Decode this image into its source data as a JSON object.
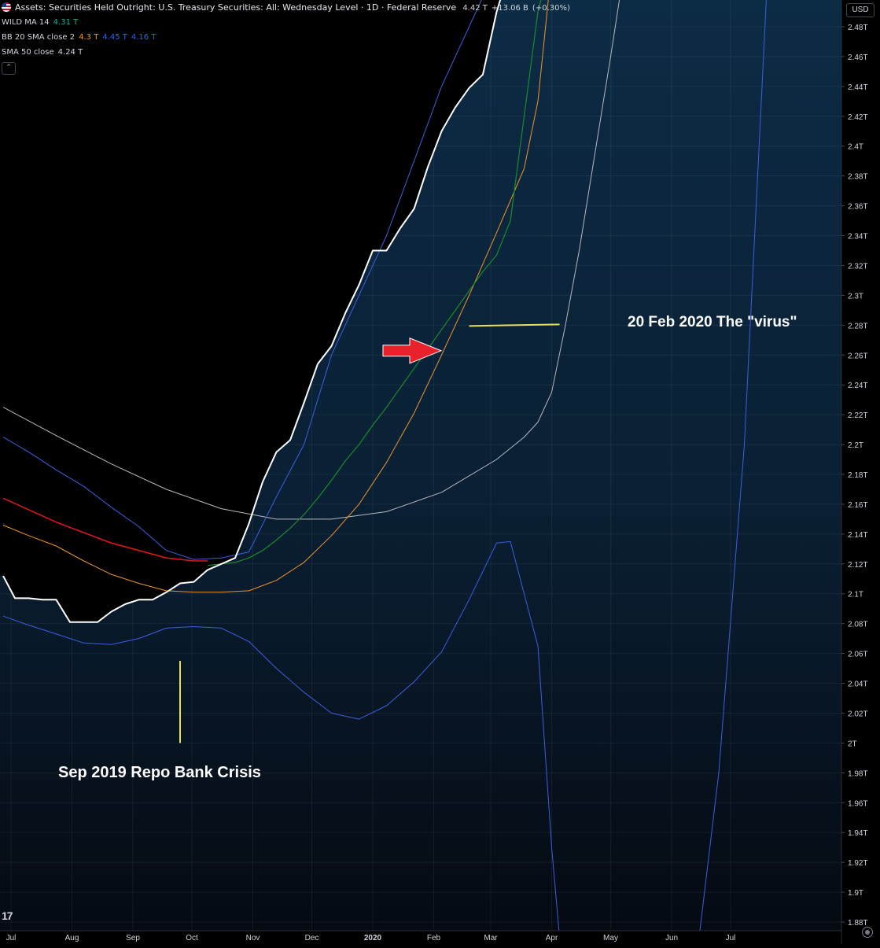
{
  "header": {
    "title": "Assets: Securities Held Outright: U.S. Treasury Securities: All: Wednesday Level · 1D · Federal Reserve",
    "last_value": "4.42 T",
    "change": "+13.06 B",
    "change_pct": "(+0.30%)",
    "currency": "USD"
  },
  "indicators": [
    {
      "name": "WILD MA 14",
      "values": [
        "4.31 T"
      ],
      "colors": [
        "#22ab94"
      ]
    },
    {
      "name": "BB 20 SMA close 2",
      "values": [
        "4.3 T",
        "4.45 T",
        "4.16 T"
      ],
      "colors": [
        "#ff9800",
        "#2962ff",
        "#2962ff"
      ]
    },
    {
      "name": "SMA 50 close",
      "values": [
        "4.24 T"
      ],
      "colors": [
        "#d1d4dc"
      ]
    }
  ],
  "collapse_icon": "chevron-up-icon",
  "annotations": {
    "repo": "Sep 2019 Repo Bank Crisis",
    "virus": "20 Feb 2020 The \"virus\""
  },
  "colors": {
    "price": "#ffffff",
    "wild_ma": "#1b8a2a",
    "bb_basis": "#f0952a",
    "bb_upper": "#3b5fe0",
    "bb_lower": "#3b5fe0",
    "sma50": "#b8b8c0",
    "red_ma": "#d81818",
    "marker": "#e8e05a",
    "arrow": "#e8212a",
    "band_fill": "#0b2740"
  },
  "chart_data": {
    "type": "line",
    "title": "Assets: Securities Held Outright: U.S. Treasury Securities: All: Wednesday Level · 1D · Federal Reserve",
    "x_tick_labels": [
      "Jul",
      "Aug",
      "Sep",
      "Oct",
      "Nov",
      "Dec",
      "2020",
      "Feb",
      "Mar",
      "Apr",
      "May",
      "Jun",
      "Jul"
    ],
    "y_tick_labels": [
      "2.48T",
      "2.46T",
      "2.44T",
      "2.42T",
      "2.4T",
      "2.38T",
      "2.36T",
      "2.34T",
      "2.32T",
      "2.3T",
      "2.28T",
      "2.26T",
      "2.24T",
      "2.22T",
      "2.2T",
      "2.18T",
      "2.16T",
      "2.14T",
      "2.12T",
      "2.1T",
      "2.08T",
      "2.06T",
      "2.04T",
      "2.02T",
      "2T",
      "1.98T",
      "1.96T",
      "1.94T",
      "1.92T",
      "1.9T",
      "1.88T"
    ],
    "ylim": [
      1.876,
      2.494
    ],
    "y_unit": "T",
    "grid": true,
    "series": [
      {
        "name": "Assets: Securities Held Outright: U.S. Treasury Securities: All: Wednesday Level",
        "key": "price",
        "points": [
          [
            "2019-06-27",
            2.112
          ],
          [
            "2019-07-03",
            2.097
          ],
          [
            "2019-07-10",
            2.097
          ],
          [
            "2019-07-17",
            2.096
          ],
          [
            "2019-07-24",
            2.096
          ],
          [
            "2019-07-31",
            2.081
          ],
          [
            "2019-08-07",
            2.081
          ],
          [
            "2019-08-14",
            2.081
          ],
          [
            "2019-08-21",
            2.088
          ],
          [
            "2019-08-28",
            2.093
          ],
          [
            "2019-09-04",
            2.096
          ],
          [
            "2019-09-11",
            2.096
          ],
          [
            "2019-09-18",
            2.101
          ],
          [
            "2019-09-25",
            2.107
          ],
          [
            "2019-10-02",
            2.108
          ],
          [
            "2019-10-09",
            2.116
          ],
          [
            "2019-10-16",
            2.12
          ],
          [
            "2019-10-23",
            2.124
          ],
          [
            "2019-10-30",
            2.147
          ],
          [
            "2019-11-06",
            2.175
          ],
          [
            "2019-11-13",
            2.195
          ],
          [
            "2019-11-20",
            2.203
          ],
          [
            "2019-11-27",
            2.228
          ],
          [
            "2019-12-04",
            2.254
          ],
          [
            "2019-12-11",
            2.266
          ],
          [
            "2019-12-18",
            2.288
          ],
          [
            "2019-12-25",
            2.307
          ],
          [
            "2020-01-01",
            2.33
          ],
          [
            "2020-01-08",
            2.33
          ],
          [
            "2020-01-15",
            2.345
          ],
          [
            "2020-01-22",
            2.358
          ],
          [
            "2020-01-29",
            2.386
          ],
          [
            "2020-02-05",
            2.41
          ],
          [
            "2020-02-12",
            2.426
          ],
          [
            "2020-02-19",
            2.439
          ],
          [
            "2020-02-26",
            2.448
          ],
          [
            "2020-03-04",
            2.49
          ],
          [
            "2020-03-11",
            2.52
          ]
        ]
      },
      {
        "name": "WILD MA 14",
        "key": "wild",
        "points": [
          [
            "2019-10-09",
            2.119
          ],
          [
            "2019-10-16",
            2.12
          ],
          [
            "2019-10-23",
            2.121
          ],
          [
            "2019-10-30",
            2.124
          ],
          [
            "2019-11-06",
            2.129
          ],
          [
            "2019-11-13",
            2.136
          ],
          [
            "2019-11-20",
            2.144
          ],
          [
            "2019-11-27",
            2.153
          ],
          [
            "2019-12-04",
            2.164
          ],
          [
            "2019-12-11",
            2.176
          ],
          [
            "2019-12-18",
            2.189
          ],
          [
            "2019-12-25",
            2.2
          ],
          [
            "2020-01-01",
            2.213
          ],
          [
            "2020-01-08",
            2.225
          ],
          [
            "2020-01-15",
            2.238
          ],
          [
            "2020-01-22",
            2.251
          ],
          [
            "2020-01-29",
            2.264
          ],
          [
            "2020-02-05",
            2.277
          ],
          [
            "2020-02-12",
            2.29
          ],
          [
            "2020-02-19",
            2.303
          ],
          [
            "2020-02-26",
            2.316
          ],
          [
            "2020-03-04",
            2.327
          ],
          [
            "2020-03-11",
            2.35
          ],
          [
            "2020-03-18",
            2.42
          ],
          [
            "2020-03-25",
            2.49
          ],
          [
            "2020-03-31",
            2.52
          ]
        ]
      },
      {
        "name": "BB 20 SMA close 2 (basis)",
        "key": "bb_basis",
        "points": [
          [
            "2019-06-27",
            2.146
          ],
          [
            "2019-07-10",
            2.139
          ],
          [
            "2019-07-24",
            2.132
          ],
          [
            "2019-08-07",
            2.122
          ],
          [
            "2019-08-21",
            2.113
          ],
          [
            "2019-09-04",
            2.107
          ],
          [
            "2019-09-18",
            2.102
          ],
          [
            "2019-10-02",
            2.101
          ],
          [
            "2019-10-16",
            2.101
          ],
          [
            "2019-10-30",
            2.102
          ],
          [
            "2019-11-13",
            2.109
          ],
          [
            "2019-11-27",
            2.121
          ],
          [
            "2019-12-11",
            2.139
          ],
          [
            "2019-12-25",
            2.16
          ],
          [
            "2020-01-08",
            2.188
          ],
          [
            "2020-01-22",
            2.221
          ],
          [
            "2020-02-05",
            2.26
          ],
          [
            "2020-02-19",
            2.3
          ],
          [
            "2020-03-04",
            2.342
          ],
          [
            "2020-03-18",
            2.385
          ],
          [
            "2020-03-25",
            2.43
          ],
          [
            "2020-04-01",
            2.52
          ]
        ]
      },
      {
        "name": "BB 20 SMA close 2 (upper)",
        "key": "bb_upper",
        "points": [
          [
            "2019-06-27",
            2.205
          ],
          [
            "2019-07-10",
            2.195
          ],
          [
            "2019-07-24",
            2.183
          ],
          [
            "2019-08-07",
            2.172
          ],
          [
            "2019-08-21",
            2.158
          ],
          [
            "2019-09-04",
            2.145
          ],
          [
            "2019-09-18",
            2.129
          ],
          [
            "2019-10-02",
            2.123
          ],
          [
            "2019-10-16",
            2.124
          ],
          [
            "2019-10-30",
            2.128
          ],
          [
            "2019-11-13",
            2.165
          ],
          [
            "2019-11-27",
            2.2
          ],
          [
            "2019-12-11",
            2.26
          ],
          [
            "2019-12-25",
            2.3
          ],
          [
            "2020-01-08",
            2.34
          ],
          [
            "2020-01-22",
            2.39
          ],
          [
            "2020-02-05",
            2.44
          ],
          [
            "2020-02-19",
            2.48
          ],
          [
            "2020-03-04",
            2.52
          ]
        ]
      },
      {
        "name": "BB 20 SMA close 2 (lower)",
        "key": "bb_lower",
        "points": [
          [
            "2019-06-27",
            2.085
          ],
          [
            "2019-07-10",
            2.079
          ],
          [
            "2019-07-24",
            2.073
          ],
          [
            "2019-08-07",
            2.067
          ],
          [
            "2019-08-21",
            2.066
          ],
          [
            "2019-09-04",
            2.07
          ],
          [
            "2019-09-18",
            2.077
          ],
          [
            "2019-10-02",
            2.078
          ],
          [
            "2019-10-16",
            2.077
          ],
          [
            "2019-10-30",
            2.068
          ],
          [
            "2019-11-13",
            2.05
          ],
          [
            "2019-11-27",
            2.034
          ],
          [
            "2019-12-11",
            2.02
          ],
          [
            "2019-12-25",
            2.016
          ],
          [
            "2020-01-08",
            2.025
          ],
          [
            "2020-01-22",
            2.041
          ],
          [
            "2020-02-05",
            2.061
          ],
          [
            "2020-02-19",
            2.096
          ],
          [
            "2020-03-04",
            2.134
          ],
          [
            "2020-03-11",
            2.135
          ],
          [
            "2020-03-25",
            2.065
          ],
          [
            "2020-04-01",
            1.93
          ],
          [
            "2020-04-05",
            1.87
          ],
          [
            "2020-06-15",
            1.87
          ],
          [
            "2020-06-25",
            1.98
          ],
          [
            "2020-07-08",
            2.2
          ],
          [
            "2020-07-20",
            2.52
          ]
        ]
      },
      {
        "name": "SMA 50 close",
        "key": "sma50",
        "points": [
          [
            "2019-06-27",
            2.225
          ],
          [
            "2019-07-24",
            2.206
          ],
          [
            "2019-08-21",
            2.187
          ],
          [
            "2019-09-18",
            2.17
          ],
          [
            "2019-10-16",
            2.157
          ],
          [
            "2019-11-13",
            2.15
          ],
          [
            "2019-12-11",
            2.15
          ],
          [
            "2020-01-08",
            2.155
          ],
          [
            "2020-02-05",
            2.168
          ],
          [
            "2020-03-04",
            2.19
          ],
          [
            "2020-03-18",
            2.205
          ],
          [
            "2020-03-25",
            2.215
          ],
          [
            "2020-04-01",
            2.235
          ],
          [
            "2020-04-08",
            2.28
          ],
          [
            "2020-04-15",
            2.33
          ],
          [
            "2020-05-01",
            2.46
          ],
          [
            "2020-05-08",
            2.52
          ]
        ]
      },
      {
        "name": "",
        "key": "red_ma",
        "points": [
          [
            "2019-06-27",
            2.164
          ],
          [
            "2019-07-24",
            2.148
          ],
          [
            "2019-08-21",
            2.134
          ],
          [
            "2019-09-18",
            2.124
          ],
          [
            "2019-10-02",
            2.122
          ],
          [
            "2019-10-09",
            2.122
          ]
        ]
      }
    ],
    "annotations": [
      {
        "text": "Sep 2019 Repo Bank Crisis",
        "marker": "vertical",
        "x": "2019-09-25",
        "y": [
          2.0,
          2.055
        ]
      },
      {
        "text": "20 Feb 2020 The \"virus\"",
        "marker": "horizontal",
        "x": [
          "2020-02-19",
          "2020-04-05"
        ],
        "y": 2.28
      }
    ],
    "arrow_at": {
      "x": "2020-02-12",
      "y": 2.265
    }
  }
}
